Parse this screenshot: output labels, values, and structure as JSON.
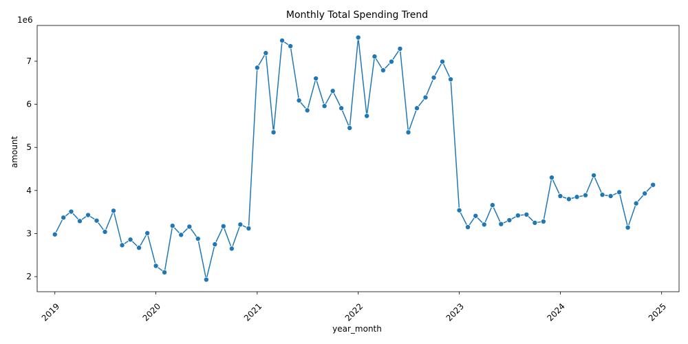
{
  "chart_data": {
    "type": "line",
    "title": "Monthly Total Spending Trend",
    "xlabel": "year_month",
    "ylabel": "amount",
    "y_offset_label": "1e6",
    "x_tick_labels": [
      "2019",
      "2020",
      "2021",
      "2022",
      "2023",
      "2024",
      "2025"
    ],
    "y_tick_labels": [
      "2",
      "3",
      "4",
      "5",
      "6",
      "7"
    ],
    "y_ticks": [
      2,
      3,
      4,
      5,
      6,
      7
    ],
    "xlim": [
      "2018-10-29",
      "2025-03-05"
    ],
    "ylim": [
      1.65,
      7.83
    ],
    "y_unit_multiplier": 1000000,
    "grid": false,
    "legend": "none",
    "color": "#1f77b4",
    "series": [
      {
        "x": [
          "2019-01",
          "2019-02",
          "2019-03",
          "2019-04",
          "2019-05",
          "2019-06",
          "2019-07",
          "2019-08",
          "2019-09",
          "2019-10",
          "2019-11",
          "2019-12",
          "2020-01",
          "2020-02",
          "2020-03",
          "2020-04",
          "2020-05",
          "2020-06",
          "2020-07",
          "2020-08",
          "2020-09",
          "2020-10",
          "2020-11",
          "2020-12",
          "2021-01",
          "2021-02",
          "2021-03",
          "2021-04",
          "2021-05",
          "2021-06",
          "2021-07",
          "2021-08",
          "2021-09",
          "2021-10",
          "2021-11",
          "2021-12",
          "2022-01",
          "2022-02",
          "2022-03",
          "2022-04",
          "2022-05",
          "2022-06",
          "2022-07",
          "2022-08",
          "2022-09",
          "2022-10",
          "2022-11",
          "2022-12",
          "2023-01",
          "2023-02",
          "2023-03",
          "2023-04",
          "2023-05",
          "2023-06",
          "2023-07",
          "2023-08",
          "2023-09",
          "2023-10",
          "2023-11",
          "2023-12",
          "2024-01",
          "2024-02",
          "2024-03",
          "2024-04",
          "2024-05",
          "2024-06",
          "2024-07",
          "2024-08",
          "2024-09",
          "2024-10",
          "2024-11",
          "2024-12"
        ],
        "y": [
          2.98,
          3.37,
          3.51,
          3.29,
          3.43,
          3.3,
          3.04,
          3.53,
          2.73,
          2.86,
          2.67,
          3.01,
          2.25,
          2.1,
          3.18,
          2.97,
          3.16,
          2.88,
          1.93,
          2.75,
          3.17,
          2.65,
          3.21,
          3.12,
          6.85,
          7.19,
          5.35,
          7.48,
          7.35,
          6.09,
          5.86,
          6.6,
          5.96,
          6.31,
          5.91,
          5.45,
          7.55,
          5.73,
          7.11,
          6.79,
          6.99,
          7.29,
          5.35,
          5.91,
          6.16,
          6.62,
          6.99,
          6.58,
          3.54,
          3.15,
          3.41,
          3.21,
          3.66,
          3.22,
          3.31,
          3.42,
          3.44,
          3.25,
          3.28,
          4.3,
          3.87,
          3.8,
          3.85,
          3.89,
          4.35,
          3.9,
          3.87,
          3.96,
          3.14,
          3.7,
          3.93,
          4.13
        ]
      }
    ]
  }
}
